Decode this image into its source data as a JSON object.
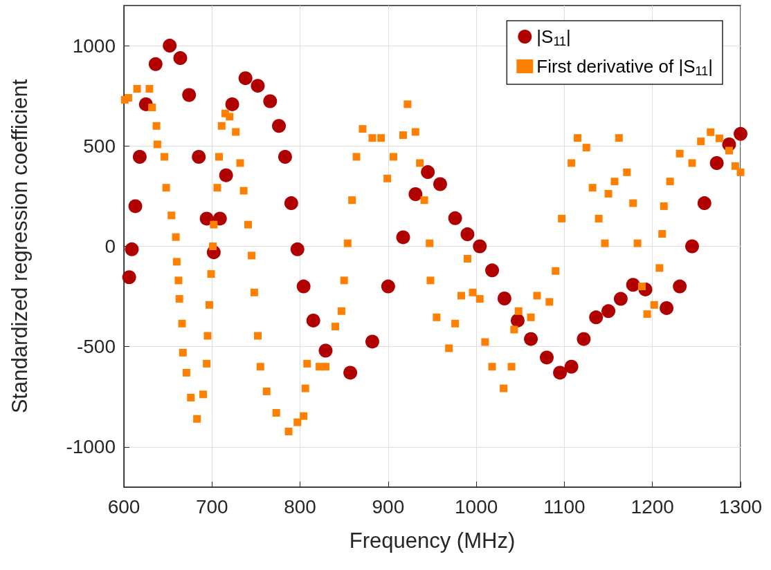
{
  "chart_data": {
    "type": "scatter",
    "xlabel": "Frequency (MHz)",
    "ylabel": "Standardized regression coefficient",
    "xlim": [
      600,
      1300
    ],
    "xticks": [
      600,
      700,
      800,
      900,
      1000,
      1100,
      1200,
      1300
    ],
    "ylim": [
      -1200,
      1200
    ],
    "yticks": [
      -1000,
      -500,
      0,
      500,
      1000
    ],
    "grid": true,
    "legend": "top right",
    "series": [
      {
        "name": "|S$_{11}$|",
        "color": "#b00000",
        "marker": "circle",
        "x": [
          606,
          609,
          613,
          618,
          625,
          636,
          652,
          664,
          674,
          685,
          694,
          702,
          709,
          716,
          723,
          738,
          752,
          766,
          776,
          783,
          790,
          797,
          804,
          815,
          829,
          857,
          882,
          900,
          917,
          931,
          945,
          959,
          976,
          990,
          1004,
          1018,
          1032,
          1047,
          1062,
          1080,
          1095,
          1108,
          1122,
          1136,
          1150,
          1164,
          1178,
          1192,
          1216,
          1231,
          1245,
          1259,
          1273,
          1287,
          1300
        ],
        "values": [
          -154,
          -15,
          200,
          446,
          708,
          908,
          1000,
          938,
          754,
          446,
          138,
          -30,
          138,
          354,
          708,
          838,
          800,
          723,
          600,
          446,
          215,
          -15,
          -200,
          -370,
          -520,
          -630,
          -475,
          -200,
          45,
          260,
          370,
          310,
          140,
          60,
          0,
          -120,
          -260,
          -370,
          -462,
          -554,
          -630,
          -600,
          -462,
          -354,
          -323,
          -262,
          -192,
          -215,
          -308,
          -200,
          0,
          215,
          415,
          508,
          560
        ]
      },
      {
        "name": "First derivative of |S$_{11}$|",
        "color": "#ff8000",
        "marker": "square",
        "x": [
          601,
          605,
          615,
          629,
          632,
          637,
          638,
          646,
          648,
          654,
          659,
          660,
          662,
          663,
          666,
          667,
          671,
          676,
          683,
          690,
          694,
          695,
          697,
          699,
          701,
          702,
          706,
          708,
          711,
          715,
          720,
          727,
          732,
          736,
          741,
          745,
          748,
          752,
          755,
          762,
          773,
          787,
          797,
          804,
          806,
          808,
          822,
          829,
          840,
          847,
          850,
          854,
          859,
          864,
          871,
          882,
          892,
          899,
          906,
          917,
          922,
          931,
          936,
          941,
          947,
          948,
          955,
          969,
          976,
          983,
          990,
          996,
          1004,
          1010,
          1018,
          1031,
          1040,
          1043,
          1048,
          1062,
          1069,
          1083,
          1090,
          1097,
          1108,
          1115,
          1125,
          1132,
          1139,
          1146,
          1150,
          1157,
          1162,
          1171,
          1178,
          1183,
          1188,
          1194,
          1202,
          1208,
          1211,
          1213,
          1220,
          1231,
          1245,
          1255,
          1266,
          1276,
          1287,
          1294,
          1300
        ],
        "values": [
          730,
          740,
          785,
          785,
          692,
          600,
          508,
          446,
          292,
          154,
          46,
          -77,
          -170,
          -262,
          -385,
          -530,
          -630,
          -754,
          -860,
          -738,
          -585,
          -446,
          -292,
          -138,
          0,
          108,
          292,
          446,
          600,
          662,
          646,
          570,
          415,
          277,
          108,
          -46,
          -230,
          -446,
          -600,
          -723,
          -830,
          -923,
          -877,
          -846,
          -708,
          -585,
          -600,
          -600,
          -400,
          -323,
          -170,
          15,
          230,
          446,
          585,
          540,
          540,
          338,
          446,
          554,
          708,
          570,
          415,
          230,
          15,
          -170,
          -354,
          -508,
          -385,
          -246,
          -62,
          -230,
          -262,
          -477,
          -600,
          -708,
          -600,
          -415,
          -323,
          -354,
          -246,
          -277,
          -123,
          138,
          415,
          540,
          492,
          292,
          138,
          15,
          262,
          323,
          540,
          369,
          215,
          15,
          -200,
          -338,
          -292,
          -108,
          62,
          200,
          323,
          462,
          415,
          523,
          569,
          538,
          477,
          400,
          369
        ]
      }
    ]
  }
}
